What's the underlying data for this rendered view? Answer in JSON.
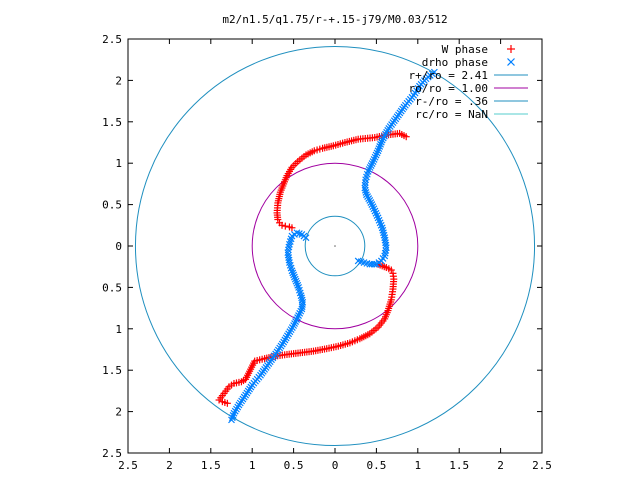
{
  "chart_data": {
    "type": "scatter",
    "title": "m2/n1.5/q1.75/r-+.15-j79/M0.03/512",
    "xlim": [
      -2.5,
      2.5
    ],
    "ylim": [
      -2.5,
      2.5
    ],
    "x_ticks": [
      -2.5,
      -2,
      -1.5,
      -1,
      -0.5,
      0,
      0.5,
      1,
      1.5,
      2,
      2.5
    ],
    "y_ticks": [
      -2.5,
      -2,
      -1.5,
      -1,
      -0.5,
      0,
      0.5,
      1,
      1.5,
      2,
      2.5
    ],
    "x_tick_labels": [
      "2.5",
      "2",
      "1.5",
      "1",
      "0.5",
      "0",
      "0.5",
      "1",
      "1.5",
      "2",
      "2.5"
    ],
    "y_tick_labels": [
      "2.5",
      "2",
      "1.5",
      "1",
      "0.5",
      "0",
      "0.5",
      "1",
      "1.5",
      "2",
      "2.5"
    ],
    "grid": false,
    "legend_position": "top-right",
    "legend": [
      {
        "label": "W phase",
        "marker": "plus",
        "color": "#ff0000"
      },
      {
        "label": "drho phase",
        "marker": "cross",
        "color": "#0080ff"
      },
      {
        "label": "r+/ro = 2.41",
        "marker": "line",
        "color": "#1f8fbf"
      },
      {
        "label": "ro/ro = 1.00",
        "marker": "line",
        "color": "#a000a0"
      },
      {
        "label": "r-/ro = .36",
        "marker": "line",
        "color": "#1f8fbf"
      },
      {
        "label": "rc/ro = NaN",
        "marker": "line",
        "color": "#55cccc"
      }
    ],
    "circles": [
      {
        "name": "r+/ro = 2.41",
        "radius": 2.41,
        "color": "#1f8fbf"
      },
      {
        "name": "ro/ro = 1.00",
        "radius": 1.0,
        "color": "#a000a0"
      },
      {
        "name": "r-/ro = .36",
        "radius": 0.36,
        "color": "#1f8fbf"
      }
    ],
    "series": [
      {
        "name": "W phase",
        "marker": "plus",
        "color": "#ff0000",
        "points": [
          [
            0.86,
            1.32
          ],
          [
            0.78,
            1.36
          ],
          [
            0.62,
            1.34
          ],
          [
            0.48,
            1.31
          ],
          [
            0.28,
            1.29
          ],
          [
            0.12,
            1.25
          ],
          [
            -0.02,
            1.21
          ],
          [
            -0.15,
            1.18
          ],
          [
            -0.25,
            1.15
          ],
          [
            -0.35,
            1.1
          ],
          [
            -0.45,
            1.02
          ],
          [
            -0.52,
            0.95
          ],
          [
            -0.58,
            0.85
          ],
          [
            -0.62,
            0.75
          ],
          [
            -0.66,
            0.65
          ],
          [
            -0.69,
            0.52
          ],
          [
            -0.7,
            0.4
          ],
          [
            -0.69,
            0.32
          ],
          [
            -0.67,
            0.28
          ],
          [
            -0.64,
            0.25
          ],
          [
            -0.6,
            0.24
          ],
          [
            -0.55,
            0.23
          ],
          [
            -0.52,
            0.22
          ],
          [
            0.52,
            -0.22
          ],
          [
            0.57,
            -0.24
          ],
          [
            0.62,
            -0.26
          ],
          [
            0.68,
            -0.29
          ],
          [
            0.7,
            -0.33
          ],
          [
            0.71,
            -0.4
          ],
          [
            0.7,
            -0.52
          ],
          [
            0.68,
            -0.65
          ],
          [
            0.64,
            -0.78
          ],
          [
            0.6,
            -0.88
          ],
          [
            0.52,
            -0.98
          ],
          [
            0.42,
            -1.06
          ],
          [
            0.3,
            -1.12
          ],
          [
            0.18,
            -1.17
          ],
          [
            0.04,
            -1.21
          ],
          [
            -0.1,
            -1.24
          ],
          [
            -0.26,
            -1.27
          ],
          [
            -0.42,
            -1.29
          ],
          [
            -0.58,
            -1.31
          ],
          [
            -0.72,
            -1.33
          ],
          [
            -0.85,
            -1.36
          ],
          [
            -0.97,
            -1.39
          ],
          [
            -1.08,
            -1.61
          ],
          [
            -1.13,
            -1.64
          ],
          [
            -1.22,
            -1.66
          ],
          [
            -1.28,
            -1.7
          ],
          [
            -1.34,
            -1.78
          ],
          [
            -1.4,
            -1.86
          ],
          [
            -1.36,
            -1.88
          ],
          [
            -1.3,
            -1.9
          ]
        ]
      },
      {
        "name": "drho phase",
        "marker": "cross",
        "color": "#0080ff",
        "points": [
          [
            1.2,
            2.1
          ],
          [
            1.1,
            2.02
          ],
          [
            1.02,
            1.93
          ],
          [
            0.95,
            1.82
          ],
          [
            0.85,
            1.7
          ],
          [
            0.75,
            1.56
          ],
          [
            0.65,
            1.42
          ],
          [
            0.57,
            1.28
          ],
          [
            0.52,
            1.15
          ],
          [
            0.46,
            1.02
          ],
          [
            0.4,
            0.9
          ],
          [
            0.37,
            0.8
          ],
          [
            0.36,
            0.7
          ],
          [
            0.38,
            0.62
          ],
          [
            0.42,
            0.55
          ],
          [
            0.47,
            0.45
          ],
          [
            0.52,
            0.34
          ],
          [
            0.57,
            0.22
          ],
          [
            0.6,
            0.1
          ],
          [
            0.62,
            -0.02
          ],
          [
            0.6,
            -0.12
          ],
          [
            0.56,
            -0.18
          ],
          [
            0.5,
            -0.22
          ],
          [
            0.42,
            -0.22
          ],
          [
            0.35,
            -0.2
          ],
          [
            0.28,
            -0.18
          ],
          [
            -0.35,
            0.1
          ],
          [
            -0.4,
            0.14
          ],
          [
            -0.46,
            0.16
          ],
          [
            -0.52,
            0.12
          ],
          [
            -0.55,
            0.02
          ],
          [
            -0.57,
            -0.08
          ],
          [
            -0.55,
            -0.2
          ],
          [
            -0.52,
            -0.3
          ],
          [
            -0.48,
            -0.4
          ],
          [
            -0.44,
            -0.5
          ],
          [
            -0.41,
            -0.6
          ],
          [
            -0.39,
            -0.68
          ],
          [
            -0.4,
            -0.76
          ],
          [
            -0.44,
            -0.84
          ],
          [
            -0.5,
            -0.96
          ],
          [
            -0.56,
            -1.06
          ],
          [
            -0.62,
            -1.16
          ],
          [
            -0.7,
            -1.28
          ],
          [
            -0.8,
            -1.42
          ],
          [
            -0.9,
            -1.56
          ],
          [
            -1.0,
            -1.68
          ],
          [
            -1.08,
            -1.8
          ],
          [
            -1.16,
            -1.92
          ],
          [
            -1.22,
            -2.02
          ],
          [
            -1.25,
            -2.1
          ]
        ]
      }
    ]
  }
}
